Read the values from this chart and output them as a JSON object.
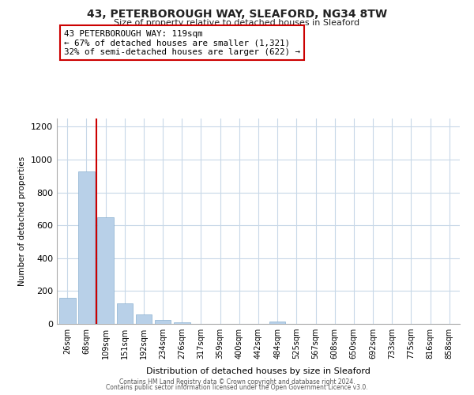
{
  "title": "43, PETERBOROUGH WAY, SLEAFORD, NG34 8TW",
  "subtitle": "Size of property relative to detached houses in Sleaford",
  "xlabel": "Distribution of detached houses by size in Sleaford",
  "ylabel": "Number of detached properties",
  "bar_labels": [
    "26sqm",
    "68sqm",
    "109sqm",
    "151sqm",
    "192sqm",
    "234sqm",
    "276sqm",
    "317sqm",
    "359sqm",
    "400sqm",
    "442sqm",
    "484sqm",
    "525sqm",
    "567sqm",
    "608sqm",
    "650sqm",
    "692sqm",
    "733sqm",
    "775sqm",
    "816sqm",
    "858sqm"
  ],
  "bar_values": [
    160,
    930,
    650,
    125,
    60,
    25,
    10,
    0,
    0,
    0,
    0,
    15,
    0,
    0,
    0,
    0,
    0,
    0,
    0,
    0,
    0
  ],
  "bar_color": "#b8d0e8",
  "bar_edge_color": "#8ab0d0",
  "highlight_line_color": "#cc0000",
  "annotation_title": "43 PETERBOROUGH WAY: 119sqm",
  "annotation_line1": "← 67% of detached houses are smaller (1,321)",
  "annotation_line2": "32% of semi-detached houses are larger (622) →",
  "annotation_box_color": "#ffffff",
  "annotation_box_edge": "#cc0000",
  "ylim": [
    0,
    1250
  ],
  "yticks": [
    0,
    200,
    400,
    600,
    800,
    1000,
    1200
  ],
  "footer1": "Contains HM Land Registry data © Crown copyright and database right 2024.",
  "footer2": "Contains public sector information licensed under the Open Government Licence v3.0.",
  "background_color": "#ffffff",
  "grid_color": "#c8d8e8"
}
